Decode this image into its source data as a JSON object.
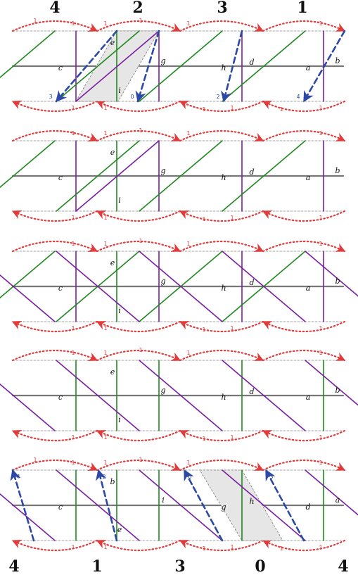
{
  "top_labels": [
    "4",
    "2",
    "3",
    "1"
  ],
  "bottom_labels": [
    "4",
    "1",
    "3",
    "0",
    "4"
  ],
  "panels": [
    {
      "labels": [
        "c",
        "e",
        "i",
        "g",
        "h",
        "d",
        "a",
        "b"
      ],
      "red_counts": [
        "1",
        "1",
        "1",
        "1",
        "1",
        "1",
        "1",
        "1",
        "1",
        "1",
        "1",
        "1"
      ],
      "blue_counts": [
        "3",
        "0",
        "2",
        "4"
      ]
    },
    {
      "labels": [
        "c",
        "e",
        "i",
        "g",
        "h",
        "d",
        "a",
        "b"
      ],
      "red_counts": [
        "1",
        "1",
        "1",
        "1",
        "1",
        "1",
        "1",
        "1",
        "1",
        "1"
      ]
    },
    {
      "labels": [
        "c",
        "e",
        "i",
        "g",
        "h",
        "d",
        "a",
        "b"
      ],
      "red_counts": [
        "1",
        "1",
        "1",
        "1",
        "1",
        "1",
        "1",
        "1",
        "1",
        "1"
      ]
    },
    {
      "labels": [
        "c",
        "e",
        "i",
        "g",
        "h",
        "d",
        "a",
        "b"
      ],
      "red_counts": [
        "1",
        "1",
        "1",
        "1",
        "1",
        "1",
        "1",
        "1",
        "1",
        "1"
      ]
    },
    {
      "labels": [
        "c",
        "b",
        "e",
        "i",
        "g",
        "h",
        "d",
        "a"
      ],
      "red_counts": [
        "1",
        "1",
        "1",
        "1",
        "1",
        "1",
        "1",
        "1",
        "1",
        "1",
        "1",
        "1"
      ],
      "blue_counts": [
        "4",
        "2",
        "0",
        "3"
      ]
    }
  ],
  "colors": {
    "green": "#1f8a1f",
    "purple": "#7a1fa2",
    "red": "#e23b3b",
    "blue": "#2d49a6",
    "gray": "#777777",
    "fill": "#e6e6e6"
  }
}
